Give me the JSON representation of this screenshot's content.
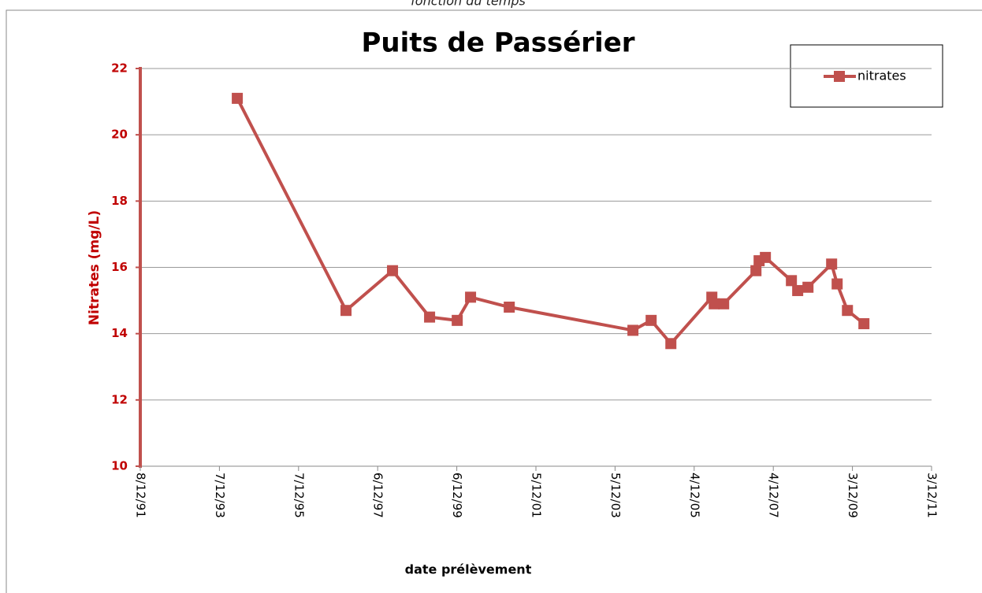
{
  "chart_data": {
    "type": "line",
    "subtitle": "fonction du temps",
    "title": "Puits de Passérier",
    "xlabel": "date prélèvement",
    "ylabel": "Nitrates (mg/L)",
    "x": [
      "1994-05-21",
      "1997-02-17",
      "1998-04-22",
      "1999-03-30",
      "1999-12-10",
      "2000-04-11",
      "2001-04-03",
      "2004-05-18",
      "2004-11-02",
      "2005-05-03",
      "2006-05-16",
      "2006-06-07",
      "2006-09-02",
      "2007-06-27",
      "2007-07-26",
      "2007-09-22",
      "2008-05-19",
      "2008-07-16",
      "2008-10-19",
      "2009-05-25",
      "2009-07-15",
      "2009-10-18",
      "2010-03-19"
    ],
    "series": [
      {
        "name": "nitrates",
        "color": "#c0504d",
        "values": [
          21.1,
          14.7,
          15.9,
          14.5,
          14.4,
          15.1,
          14.8,
          14.1,
          14.4,
          13.7,
          15.1,
          14.9,
          14.9,
          15.9,
          16.2,
          16.3,
          15.6,
          15.3,
          15.4,
          16.1,
          15.5,
          14.7,
          14.3
        ]
      }
    ],
    "xlim": [
      "1991-12-08",
      "2011-12-03"
    ],
    "xticks": [
      {
        "value": "1991-12-08",
        "label": "8/12/91"
      },
      {
        "value": "1993-12-07",
        "label": "7/12/93"
      },
      {
        "value": "1995-12-07",
        "label": "7/12/95"
      },
      {
        "value": "1997-12-06",
        "label": "6/12/97"
      },
      {
        "value": "1999-12-06",
        "label": "6/12/99"
      },
      {
        "value": "2001-12-05",
        "label": "5/12/01"
      },
      {
        "value": "2003-12-05",
        "label": "5/12/03"
      },
      {
        "value": "2005-12-04",
        "label": "4/12/05"
      },
      {
        "value": "2007-12-04",
        "label": "4/12/07"
      },
      {
        "value": "2009-12-03",
        "label": "3/12/09"
      },
      {
        "value": "2011-12-03",
        "label": "3/12/11"
      }
    ],
    "ylim": [
      10,
      22
    ],
    "yticks": [
      10,
      12,
      14,
      16,
      18,
      20,
      22
    ],
    "grid": true,
    "legend": "top-right"
  }
}
